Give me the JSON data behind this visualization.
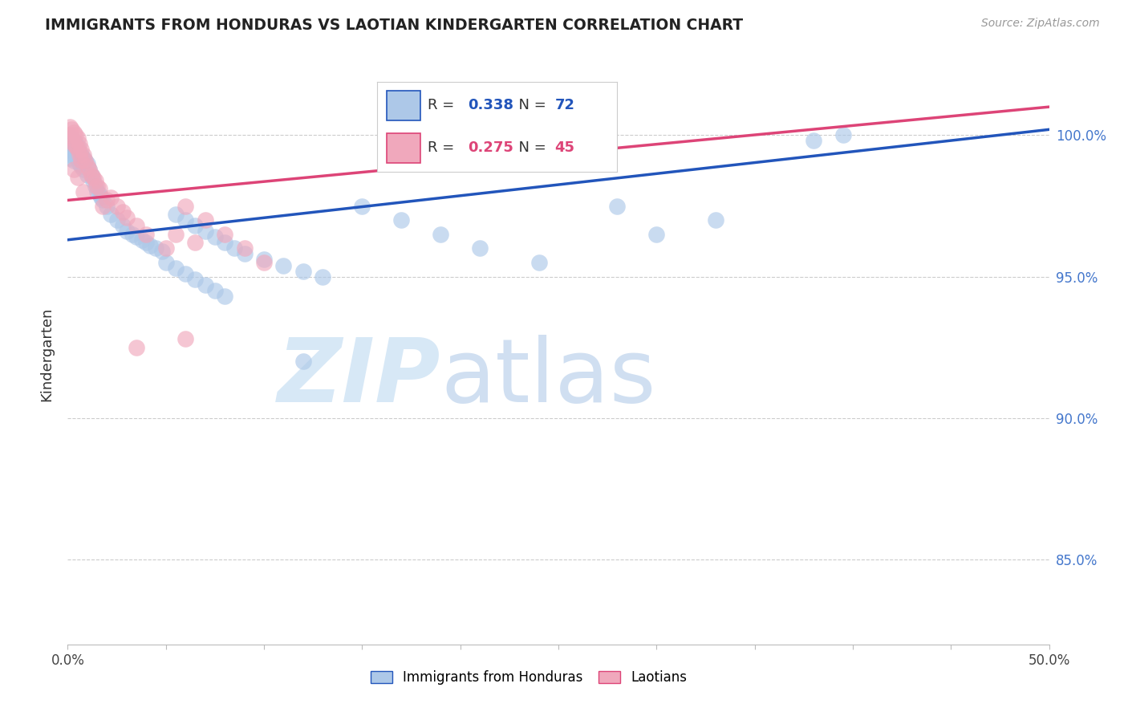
{
  "title": "IMMIGRANTS FROM HONDURAS VS LAOTIAN KINDERGARTEN CORRELATION CHART",
  "source": "Source: ZipAtlas.com",
  "ylabel": "Kindergarten",
  "xlim": [
    0.0,
    0.5
  ],
  "ylim": [
    0.82,
    1.025
  ],
  "yticks": [
    0.85,
    0.9,
    0.95,
    1.0
  ],
  "ytick_labels": [
    "85.0%",
    "90.0%",
    "95.0%",
    "100.0%"
  ],
  "xticks": [
    0.0,
    0.05,
    0.1,
    0.15,
    0.2,
    0.25,
    0.3,
    0.35,
    0.4,
    0.45,
    0.5
  ],
  "xtick_labels": [
    "0.0%",
    "",
    "",
    "",
    "",
    "",
    "",
    "",
    "",
    "",
    "50.0%"
  ],
  "blue_R": 0.338,
  "blue_N": 72,
  "pink_R": 0.275,
  "pink_N": 45,
  "blue_color": "#adc8e8",
  "pink_color": "#f0a8bc",
  "blue_line_color": "#2255bb",
  "pink_line_color": "#dd4477",
  "legend_blue_label": "Immigrants from Honduras",
  "legend_pink_label": "Laotians",
  "background_color": "#ffffff",
  "blue_line_x0": 0.0,
  "blue_line_y0": 0.963,
  "blue_line_x1": 0.5,
  "blue_line_y1": 1.002,
  "pink_line_x0": 0.0,
  "pink_line_y0": 0.977,
  "pink_line_x1": 0.5,
  "pink_line_y1": 1.01,
  "blue_x": [
    0.001,
    0.001,
    0.001,
    0.002,
    0.002,
    0.002,
    0.003,
    0.003,
    0.003,
    0.004,
    0.004,
    0.005,
    0.005,
    0.006,
    0.006,
    0.007,
    0.007,
    0.008,
    0.008,
    0.009,
    0.01,
    0.01,
    0.011,
    0.012,
    0.013,
    0.014,
    0.015,
    0.016,
    0.017,
    0.018,
    0.02,
    0.022,
    0.025,
    0.028,
    0.03,
    0.033,
    0.035,
    0.038,
    0.04,
    0.042,
    0.045,
    0.048,
    0.055,
    0.06,
    0.065,
    0.07,
    0.075,
    0.08,
    0.085,
    0.09,
    0.1,
    0.11,
    0.12,
    0.13,
    0.15,
    0.17,
    0.19,
    0.21,
    0.24,
    0.28,
    0.3,
    0.33,
    0.38,
    0.395,
    0.05,
    0.055,
    0.06,
    0.065,
    0.07,
    0.075,
    0.08,
    0.12
  ],
  "blue_y": [
    0.998,
    0.995,
    0.992,
    0.999,
    0.996,
    0.993,
    0.998,
    0.995,
    0.991,
    0.997,
    0.993,
    0.996,
    0.992,
    0.994,
    0.99,
    0.993,
    0.989,
    0.992,
    0.988,
    0.991,
    0.99,
    0.986,
    0.988,
    0.986,
    0.984,
    0.982,
    0.98,
    0.979,
    0.978,
    0.977,
    0.975,
    0.972,
    0.97,
    0.968,
    0.966,
    0.965,
    0.964,
    0.963,
    0.962,
    0.961,
    0.96,
    0.959,
    0.972,
    0.97,
    0.968,
    0.966,
    0.964,
    0.962,
    0.96,
    0.958,
    0.956,
    0.954,
    0.952,
    0.95,
    0.975,
    0.97,
    0.965,
    0.96,
    0.955,
    0.975,
    0.965,
    0.97,
    0.998,
    1.0,
    0.955,
    0.953,
    0.951,
    0.949,
    0.947,
    0.945,
    0.943,
    0.92
  ],
  "pink_x": [
    0.001,
    0.001,
    0.002,
    0.002,
    0.003,
    0.003,
    0.004,
    0.004,
    0.005,
    0.005,
    0.006,
    0.006,
    0.007,
    0.007,
    0.008,
    0.009,
    0.01,
    0.011,
    0.012,
    0.013,
    0.014,
    0.015,
    0.016,
    0.02,
    0.025,
    0.03,
    0.035,
    0.04,
    0.05,
    0.06,
    0.07,
    0.08,
    0.09,
    0.1,
    0.055,
    0.065,
    0.022,
    0.028,
    0.003,
    0.005,
    0.008,
    0.018,
    0.035,
    0.06,
    0.18
  ],
  "pink_y": [
    1.003,
    1.0,
    1.002,
    0.999,
    1.001,
    0.997,
    1.0,
    0.996,
    0.999,
    0.995,
    0.997,
    0.993,
    0.995,
    0.991,
    0.993,
    0.991,
    0.989,
    0.988,
    0.986,
    0.985,
    0.984,
    0.982,
    0.981,
    0.977,
    0.975,
    0.971,
    0.968,
    0.965,
    0.96,
    0.975,
    0.97,
    0.965,
    0.96,
    0.955,
    0.965,
    0.962,
    0.978,
    0.973,
    0.988,
    0.985,
    0.98,
    0.975,
    0.925,
    0.928,
    0.99
  ]
}
